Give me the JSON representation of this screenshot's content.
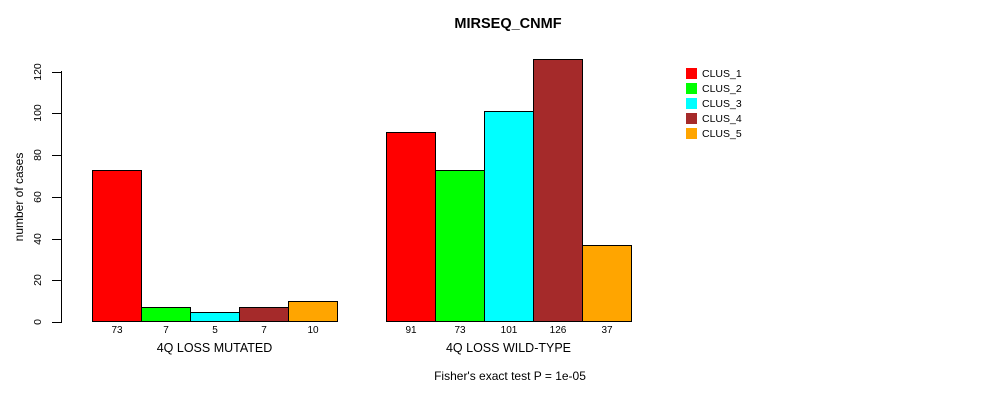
{
  "chart_data": {
    "type": "bar",
    "title": "MIRSEQ_CNMF",
    "ylabel": "number of cases",
    "xlabel": "",
    "yticks": [
      0,
      20,
      40,
      60,
      80,
      100,
      120
    ],
    "ylim": [
      0,
      126
    ],
    "grid": false,
    "legend_position": "right-outside",
    "categories": [
      "4Q LOSS MUTATED",
      "4Q LOSS WILD-TYPE"
    ],
    "series": [
      {
        "name": "CLUS_1",
        "color": "#ff0000",
        "values": [
          73,
          91
        ]
      },
      {
        "name": "CLUS_2",
        "color": "#00ff00",
        "values": [
          7,
          73
        ]
      },
      {
        "name": "CLUS_3",
        "color": "#00ffff",
        "values": [
          5,
          101
        ]
      },
      {
        "name": "CLUS_4",
        "color": "#a52a2a",
        "values": [
          7,
          126
        ]
      },
      {
        "name": "CLUS_5",
        "color": "#ffa500",
        "values": [
          10,
          37
        ]
      }
    ],
    "bar_value_labels": {
      "4Q LOSS MUTATED": [
        73,
        7,
        5,
        7,
        10
      ],
      "4Q LOSS WILD-TYPE": [
        91,
        73,
        101,
        126,
        37
      ]
    },
    "footer": "Fisher's exact test P = 1e-05"
  }
}
